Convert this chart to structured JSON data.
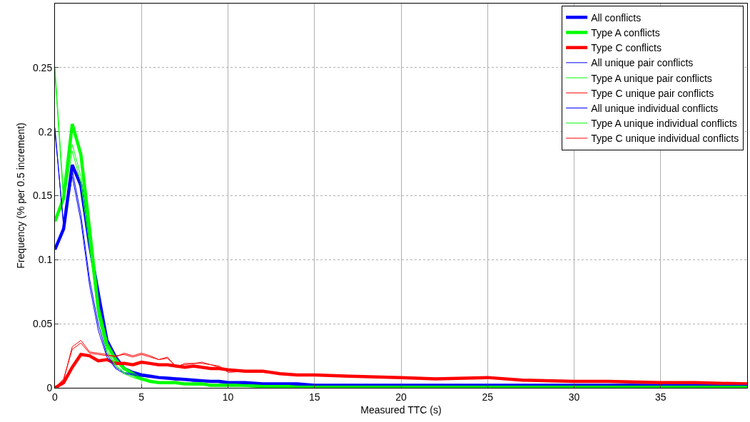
{
  "chart_data": {
    "type": "line",
    "xlabel": "Measured TTC (s)",
    "ylabel": "Frequency (% per 0.5 increment)",
    "x": [
      0,
      0.5,
      1,
      1.5,
      2,
      2.5,
      3,
      3.5,
      4,
      4.5,
      5,
      5.5,
      6,
      6.5,
      7,
      7.5,
      8,
      8.5,
      9,
      9.5,
      10,
      11,
      12,
      13,
      14,
      15,
      17,
      20,
      22,
      25,
      27,
      30,
      32,
      35,
      37,
      40
    ],
    "xlim": [
      0,
      40
    ],
    "xticks": [
      0,
      5,
      10,
      15,
      20,
      25,
      30,
      35
    ],
    "ylim": [
      0,
      0.3
    ],
    "yticks": [
      0,
      0.05,
      0.1,
      0.15,
      0.2,
      0.25
    ],
    "grid": true,
    "legend": "top right",
    "line_style": "solid",
    "marker": "none",
    "series": [
      {
        "name": "All conflicts",
        "color": "#0000ff",
        "values": [
          0.108,
          0.124,
          0.174,
          0.158,
          0.112,
          0.074,
          0.037,
          0.024,
          0.015,
          0.012,
          0.01,
          0.009,
          0.008,
          0.0075,
          0.007,
          0.0065,
          0.006,
          0.0055,
          0.005,
          0.005,
          0.004,
          0.004,
          0.003,
          0.003,
          0.003,
          0.002,
          0.002,
          0.002,
          0.002,
          0.002,
          0.002,
          0.002,
          0.002,
          0.002,
          0.002,
          0.002
        ]
      },
      {
        "name": "Type A conflicts",
        "color": "#00ff00",
        "values": [
          0.13,
          0.148,
          0.206,
          0.182,
          0.124,
          0.062,
          0.034,
          0.022,
          0.015,
          0.011,
          0.007,
          0.005,
          0.004,
          0.004,
          0.004,
          0.003,
          0.003,
          0.003,
          0.002,
          0.002,
          0.002,
          0.002,
          0.001,
          0.001,
          0.001,
          0.001,
          0.001,
          0.001,
          0.001,
          0.001,
          0.001,
          0.001,
          0.001,
          0.001,
          0.001,
          0.001
        ]
      },
      {
        "name": "Type C conflicts",
        "color": "#ff0000",
        "values": [
          0,
          0.004,
          0.016,
          0.026,
          0.025,
          0.021,
          0.022,
          0.019,
          0.019,
          0.018,
          0.02,
          0.019,
          0.018,
          0.018,
          0.017,
          0.016,
          0.017,
          0.016,
          0.015,
          0.015,
          0.014,
          0.013,
          0.013,
          0.011,
          0.01,
          0.01,
          0.009,
          0.008,
          0.007,
          0.008,
          0.006,
          0.005,
          0.005,
          0.004,
          0.004,
          0.003
        ]
      },
      {
        "name": "All unique pair conflicts",
        "color": "#0000ff",
        "values": [
          0.203,
          0.125,
          0.17,
          0.135,
          0.085,
          0.05,
          0.026,
          0.016,
          0.012,
          0.011,
          0.01,
          0.009,
          0.008,
          0.007,
          0.007,
          0.006,
          0.006,
          0.005,
          0.005,
          0.005,
          0.004,
          0.004,
          0.003,
          0.003,
          0.003,
          0.002,
          0.002,
          0.002,
          0.002,
          0.002,
          0.002,
          0.002,
          0.002,
          0.002,
          0.002,
          0.002
        ]
      },
      {
        "name": "Type A unique pair conflicts",
        "color": "#00ff00",
        "values": [
          0.25,
          0.15,
          0.19,
          0.165,
          0.115,
          0.058,
          0.03,
          0.018,
          0.012,
          0.009,
          0.006,
          0.005,
          0.004,
          0.004,
          0.003,
          0.003,
          0.003,
          0.002,
          0.002,
          0.002,
          0.002,
          0.002,
          0.001,
          0.001,
          0.001,
          0.001,
          0.001,
          0.001,
          0.001,
          0.001,
          0.001,
          0.001,
          0.001,
          0.001,
          0.001,
          0.001
        ]
      },
      {
        "name": "Type C unique pair conflicts",
        "color": "#ff0000",
        "values": [
          0,
          0.006,
          0.032,
          0.037,
          0.028,
          0.027,
          0.026,
          0.024,
          0.027,
          0.025,
          0.027,
          0.025,
          0.022,
          0.024,
          0.016,
          0.019,
          0.019,
          0.02,
          0.018,
          0.017,
          0.012,
          0.013,
          0.012,
          0.011,
          0.01,
          0.01,
          0.009,
          0.008,
          0.007,
          0.008,
          0.006,
          0.005,
          0.005,
          0.004,
          0.004,
          0.003
        ]
      },
      {
        "name": "All unique individual conflicts",
        "color": "#0000ff",
        "values": [
          0.2,
          0.128,
          0.165,
          0.13,
          0.08,
          0.045,
          0.024,
          0.015,
          0.011,
          0.01,
          0.009,
          0.008,
          0.008,
          0.007,
          0.006,
          0.006,
          0.005,
          0.005,
          0.005,
          0.004,
          0.004,
          0.003,
          0.003,
          0.003,
          0.002,
          0.002,
          0.002,
          0.002,
          0.002,
          0.002,
          0.002,
          0.002,
          0.002,
          0.002,
          0.002,
          0.002
        ]
      },
      {
        "name": "Type A unique individual conflicts",
        "color": "#00ff00",
        "values": [
          0.245,
          0.145,
          0.185,
          0.16,
          0.11,
          0.055,
          0.028,
          0.017,
          0.011,
          0.008,
          0.006,
          0.005,
          0.004,
          0.003,
          0.003,
          0.003,
          0.002,
          0.002,
          0.002,
          0.002,
          0.002,
          0.001,
          0.001,
          0.001,
          0.001,
          0.001,
          0.001,
          0.001,
          0.001,
          0.001,
          0.001,
          0.001,
          0.001,
          0.001,
          0.001,
          0.001
        ]
      },
      {
        "name": "Type C unique individual conflicts",
        "color": "#ff0000",
        "values": [
          0,
          0.007,
          0.03,
          0.035,
          0.027,
          0.026,
          0.025,
          0.025,
          0.026,
          0.024,
          0.026,
          0.024,
          0.022,
          0.023,
          0.017,
          0.018,
          0.019,
          0.019,
          0.018,
          0.016,
          0.013,
          0.013,
          0.012,
          0.011,
          0.01,
          0.01,
          0.009,
          0.008,
          0.007,
          0.008,
          0.006,
          0.005,
          0.005,
          0.004,
          0.004,
          0.003
        ]
      }
    ]
  }
}
